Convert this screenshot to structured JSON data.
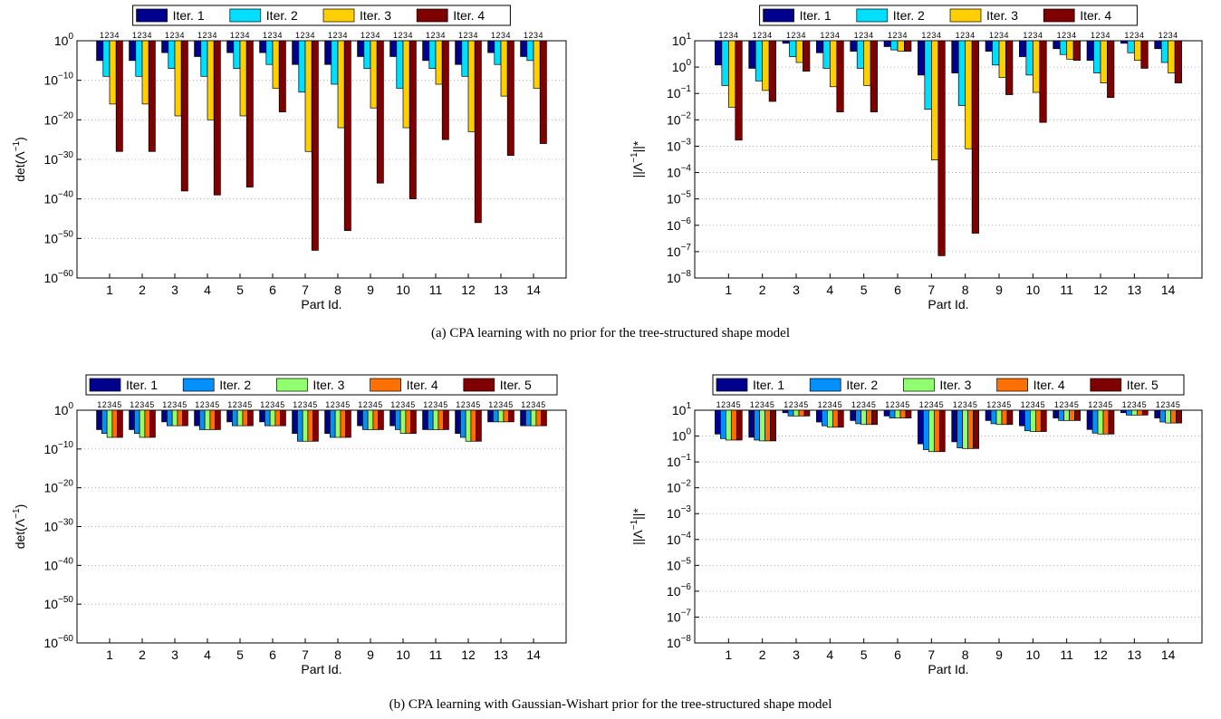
{
  "figure": {
    "caption_a": "(a) CPA learning with no prior for the tree-structured shape model",
    "caption_b": "(b) CPA learning with Gaussian-Wishart prior for the tree-structured shape model"
  },
  "chart_data": [
    {
      "id": "a-det",
      "type": "bar",
      "yscale": "log",
      "ylim_exp": [
        -60,
        0
      ],
      "ytick_exponents": [
        0,
        -10,
        -20,
        -30,
        -40,
        -50,
        -60
      ],
      "ylabel_base": "det(Λ",
      "ylabel_sup": "−1",
      "ylabel_tail": ")",
      "xlabel": "Part Id.",
      "categories": [
        "1",
        "2",
        "3",
        "4",
        "5",
        "6",
        "7",
        "8",
        "9",
        "10",
        "11",
        "12",
        "13",
        "14"
      ],
      "bar_index_label": "1234",
      "grid": true,
      "series": [
        {
          "name": "Iter. 1",
          "color": "#00008f",
          "values": [
            1e-05,
            1e-05,
            0.001,
            0.0001,
            0.001,
            0.001,
            1e-06,
            1e-06,
            0.0001,
            0.0001,
            1e-05,
            1e-06,
            0.001,
            0.0001
          ]
        },
        {
          "name": "Iter. 2",
          "color": "#00dfff",
          "values": [
            1e-09,
            1e-09,
            1e-07,
            1e-09,
            1e-07,
            1e-06,
            1e-13,
            1e-11,
            1e-07,
            1e-12,
            1e-07,
            1e-09,
            1e-06,
            1e-05
          ]
        },
        {
          "name": "Iter. 3",
          "color": "#ffcf00",
          "values": [
            1e-16,
            1e-16,
            1e-19,
            1e-20,
            1e-19,
            1e-12,
            1e-28,
            1e-22,
            1e-17,
            1e-22,
            1e-11,
            1e-23,
            1e-14,
            1e-12
          ]
        },
        {
          "name": "Iter. 4",
          "color": "#7f0000",
          "values": [
            1e-28,
            1e-28,
            1e-38,
            1e-39,
            1e-37,
            1e-18,
            1e-53,
            1e-48,
            1e-36,
            1e-40,
            1e-25,
            1e-46,
            1e-29,
            1e-26
          ]
        }
      ]
    },
    {
      "id": "a-norm",
      "type": "bar",
      "yscale": "log",
      "ylim_exp": [
        -8,
        1
      ],
      "ytick_exponents": [
        1,
        0,
        -1,
        -2,
        -3,
        -4,
        -5,
        -6,
        -7,
        -8
      ],
      "ylabel_base": "||Λ",
      "ylabel_sup": "−1",
      "ylabel_tail": "||*",
      "xlabel": "Part Id.",
      "categories": [
        "1",
        "2",
        "3",
        "4",
        "5",
        "6",
        "7",
        "8",
        "9",
        "10",
        "11",
        "12",
        "13",
        "14"
      ],
      "bar_index_label": "1234",
      "grid": true,
      "series": [
        {
          "name": "Iter. 1",
          "color": "#00008f",
          "values": [
            1.2,
            0.9,
            8,
            3.5,
            4,
            6,
            0.5,
            0.6,
            4,
            2.5,
            5,
            1.8,
            8,
            5
          ]
        },
        {
          "name": "Iter. 2",
          "color": "#00dfff",
          "values": [
            0.2,
            0.3,
            2.5,
            0.9,
            0.9,
            4.5,
            0.025,
            0.035,
            1.2,
            0.5,
            3,
            0.6,
            3.5,
            1.5
          ]
        },
        {
          "name": "Iter. 3",
          "color": "#ffcf00",
          "values": [
            0.03,
            0.13,
            1.5,
            0.18,
            0.2,
            4,
            0.0003,
            0.0008,
            0.4,
            0.11,
            2,
            0.25,
            1.8,
            0.6
          ]
        },
        {
          "name": "Iter. 4",
          "color": "#7f0000",
          "values": [
            0.0017,
            0.05,
            0.7,
            0.02,
            0.02,
            4,
            7e-08,
            5e-07,
            0.09,
            0.008,
            1.8,
            0.07,
            0.9,
            0.25
          ]
        }
      ]
    },
    {
      "id": "b-det",
      "type": "bar",
      "yscale": "log",
      "ylim_exp": [
        -60,
        0
      ],
      "ytick_exponents": [
        0,
        -10,
        -20,
        -30,
        -40,
        -50,
        -60
      ],
      "ylabel_base": "det(Λ",
      "ylabel_sup": "−1",
      "ylabel_tail": ")",
      "xlabel": "Part Id.",
      "categories": [
        "1",
        "2",
        "3",
        "4",
        "5",
        "6",
        "7",
        "8",
        "9",
        "10",
        "11",
        "12",
        "13",
        "14"
      ],
      "bar_index_label": "12345",
      "grid": true,
      "series": [
        {
          "name": "Iter. 1",
          "color": "#00008f",
          "values": [
            1e-05,
            1e-05,
            0.001,
            0.0001,
            0.001,
            0.001,
            1e-06,
            1e-06,
            0.0001,
            0.0001,
            1e-05,
            1e-06,
            0.001,
            0.0001
          ]
        },
        {
          "name": "Iter. 2",
          "color": "#0090ff",
          "values": [
            1e-06,
            1e-06,
            0.0001,
            1e-05,
            0.0001,
            0.0001,
            1e-08,
            1e-07,
            1e-05,
            1e-05,
            1e-05,
            1e-07,
            0.001,
            0.0001
          ]
        },
        {
          "name": "Iter. 3",
          "color": "#90ff70",
          "values": [
            1e-07,
            1e-07,
            0.0001,
            1e-05,
            0.0001,
            0.0001,
            1e-08,
            1e-07,
            1e-05,
            1e-06,
            1e-05,
            1e-08,
            0.001,
            0.0001
          ]
        },
        {
          "name": "Iter. 4",
          "color": "#ff7000",
          "values": [
            1e-07,
            1e-07,
            0.0001,
            1e-05,
            0.0001,
            0.0001,
            1e-08,
            1e-07,
            1e-05,
            1e-06,
            1e-05,
            1e-08,
            0.001,
            0.0001
          ]
        },
        {
          "name": "Iter. 5",
          "color": "#7f0000",
          "values": [
            1e-07,
            1e-07,
            0.0001,
            1e-05,
            0.0001,
            0.0001,
            1e-08,
            1e-07,
            1e-05,
            1e-06,
            1e-05,
            1e-08,
            0.001,
            0.0001
          ]
        }
      ]
    },
    {
      "id": "b-norm",
      "type": "bar",
      "yscale": "log",
      "ylim_exp": [
        -8,
        1
      ],
      "ytick_exponents": [
        1,
        0,
        -1,
        -2,
        -3,
        -4,
        -5,
        -6,
        -7,
        -8
      ],
      "ylabel_base": "||Λ",
      "ylabel_sup": "−1",
      "ylabel_tail": "||*",
      "xlabel": "Part Id.",
      "categories": [
        "1",
        "2",
        "3",
        "4",
        "5",
        "6",
        "7",
        "8",
        "9",
        "10",
        "11",
        "12",
        "13",
        "14"
      ],
      "bar_index_label": "12345",
      "grid": true,
      "series": [
        {
          "name": "Iter. 1",
          "color": "#00008f",
          "values": [
            1.2,
            0.9,
            8,
            3.5,
            4,
            6,
            0.5,
            0.6,
            4,
            2.5,
            5,
            1.8,
            8,
            5
          ]
        },
        {
          "name": "Iter. 2",
          "color": "#0090ff",
          "values": [
            0.8,
            0.7,
            6,
            2.5,
            3,
            5,
            0.3,
            0.35,
            3,
            1.6,
            4,
            1.3,
            6.5,
            3.5
          ]
        },
        {
          "name": "Iter. 3",
          "color": "#90ff70",
          "values": [
            0.7,
            0.65,
            6,
            2.2,
            2.8,
            5,
            0.25,
            0.33,
            2.8,
            1.5,
            4,
            1.2,
            6.5,
            3.2
          ]
        },
        {
          "name": "Iter. 4",
          "color": "#ff7000",
          "values": [
            0.7,
            0.65,
            6,
            2.2,
            2.8,
            5,
            0.25,
            0.33,
            2.8,
            1.5,
            4,
            1.2,
            6.5,
            3.2
          ]
        },
        {
          "name": "Iter. 5",
          "color": "#7f0000",
          "values": [
            0.7,
            0.65,
            6,
            2.2,
            2.8,
            5,
            0.25,
            0.33,
            2.8,
            1.5,
            4,
            1.2,
            6.5,
            3.2
          ]
        }
      ]
    }
  ]
}
